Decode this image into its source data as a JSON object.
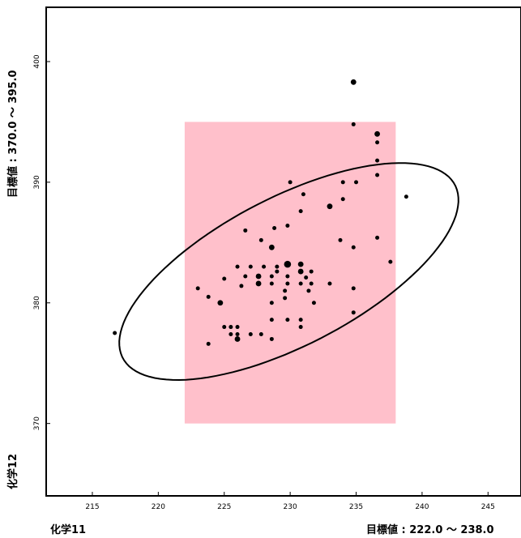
{
  "chart_data": {
    "type": "scatter",
    "xlabel": "化学11",
    "ylabel": "化学12",
    "x_target_label": "目標値 : 222.0 ～ 238.0",
    "y_target_label": "目標値 : 370.0 ～ 395.0",
    "xlim": [
      211.5,
      247.5
    ],
    "ylim": [
      364.0,
      404.5
    ],
    "x_ticks": [
      215,
      220,
      225,
      230,
      235,
      240,
      245
    ],
    "y_ticks": [
      370,
      380,
      390,
      400
    ],
    "target_x": [
      222.0,
      238.0
    ],
    "target_y": [
      370.0,
      395.0
    ],
    "target_color": "#ffc0cb",
    "ellipse": {
      "center": [
        229.9,
        382.6
      ],
      "semi_major": 14.5,
      "semi_minor": 6.0,
      "angle_deg": 30.5
    },
    "points": [
      [
        216.7,
        377.5,
        1
      ],
      [
        223.0,
        381.2,
        1
      ],
      [
        223.8,
        380.5,
        1
      ],
      [
        223.8,
        376.6,
        1
      ],
      [
        224.7,
        380.0,
        2
      ],
      [
        225.0,
        378.0,
        1
      ],
      [
        225.5,
        378.0,
        1
      ],
      [
        226.0,
        378.0,
        1
      ],
      [
        225.5,
        377.4,
        1
      ],
      [
        226.0,
        377.4,
        1
      ],
      [
        226.0,
        377.0,
        2
      ],
      [
        227.0,
        377.4,
        1
      ],
      [
        227.8,
        377.4,
        1
      ],
      [
        226.3,
        381.4,
        1
      ],
      [
        225.0,
        382.0,
        1
      ],
      [
        226.0,
        383.0,
        1
      ],
      [
        227.0,
        383.0,
        1
      ],
      [
        228.0,
        383.0,
        1
      ],
      [
        229.0,
        383.0,
        1
      ],
      [
        226.6,
        382.2,
        1
      ],
      [
        227.6,
        382.2,
        2
      ],
      [
        228.6,
        382.2,
        1
      ],
      [
        229.8,
        382.2,
        1
      ],
      [
        227.6,
        381.6,
        2
      ],
      [
        228.6,
        381.6,
        1
      ],
      [
        229.8,
        381.6,
        1
      ],
      [
        230.8,
        381.6,
        1
      ],
      [
        229.8,
        383.2,
        3
      ],
      [
        230.8,
        383.2,
        2
      ],
      [
        229.0,
        382.6,
        1
      ],
      [
        230.8,
        382.6,
        2
      ],
      [
        231.6,
        382.6,
        1
      ],
      [
        229.6,
        381.0,
        1
      ],
      [
        231.4,
        381.0,
        1
      ],
      [
        229.6,
        380.4,
        1
      ],
      [
        231.6,
        381.6,
        1
      ],
      [
        228.6,
        380.0,
        1
      ],
      [
        231.8,
        380.0,
        1
      ],
      [
        231.2,
        382.1,
        1
      ],
      [
        233.0,
        381.6,
        1
      ],
      [
        228.6,
        378.6,
        1
      ],
      [
        229.8,
        378.6,
        1
      ],
      [
        230.8,
        378.6,
        1
      ],
      [
        228.6,
        377.0,
        1
      ],
      [
        230.8,
        378.0,
        1
      ],
      [
        226.6,
        386.0,
        1
      ],
      [
        227.8,
        385.2,
        1
      ],
      [
        228.8,
        386.2,
        1
      ],
      [
        228.6,
        384.6,
        2
      ],
      [
        229.8,
        386.4,
        1
      ],
      [
        230.8,
        387.6,
        1
      ],
      [
        233.0,
        388.0,
        2
      ],
      [
        234.0,
        388.6,
        1
      ],
      [
        234.0,
        390.0,
        1
      ],
      [
        235.0,
        390.0,
        1
      ],
      [
        230.0,
        390.0,
        1
      ],
      [
        231.0,
        389.0,
        1
      ],
      [
        233.8,
        385.2,
        1
      ],
      [
        234.8,
        384.6,
        1
      ],
      [
        234.8,
        381.2,
        1
      ],
      [
        234.8,
        379.2,
        1
      ],
      [
        236.6,
        390.6,
        1
      ],
      [
        236.6,
        391.8,
        1
      ],
      [
        236.6,
        393.3,
        1
      ],
      [
        236.6,
        394.0,
        2
      ],
      [
        234.8,
        394.8,
        1
      ],
      [
        234.8,
        398.3,
        2
      ],
      [
        238.8,
        388.8,
        1
      ],
      [
        237.6,
        383.4,
        1
      ],
      [
        236.6,
        385.4,
        1
      ]
    ]
  }
}
